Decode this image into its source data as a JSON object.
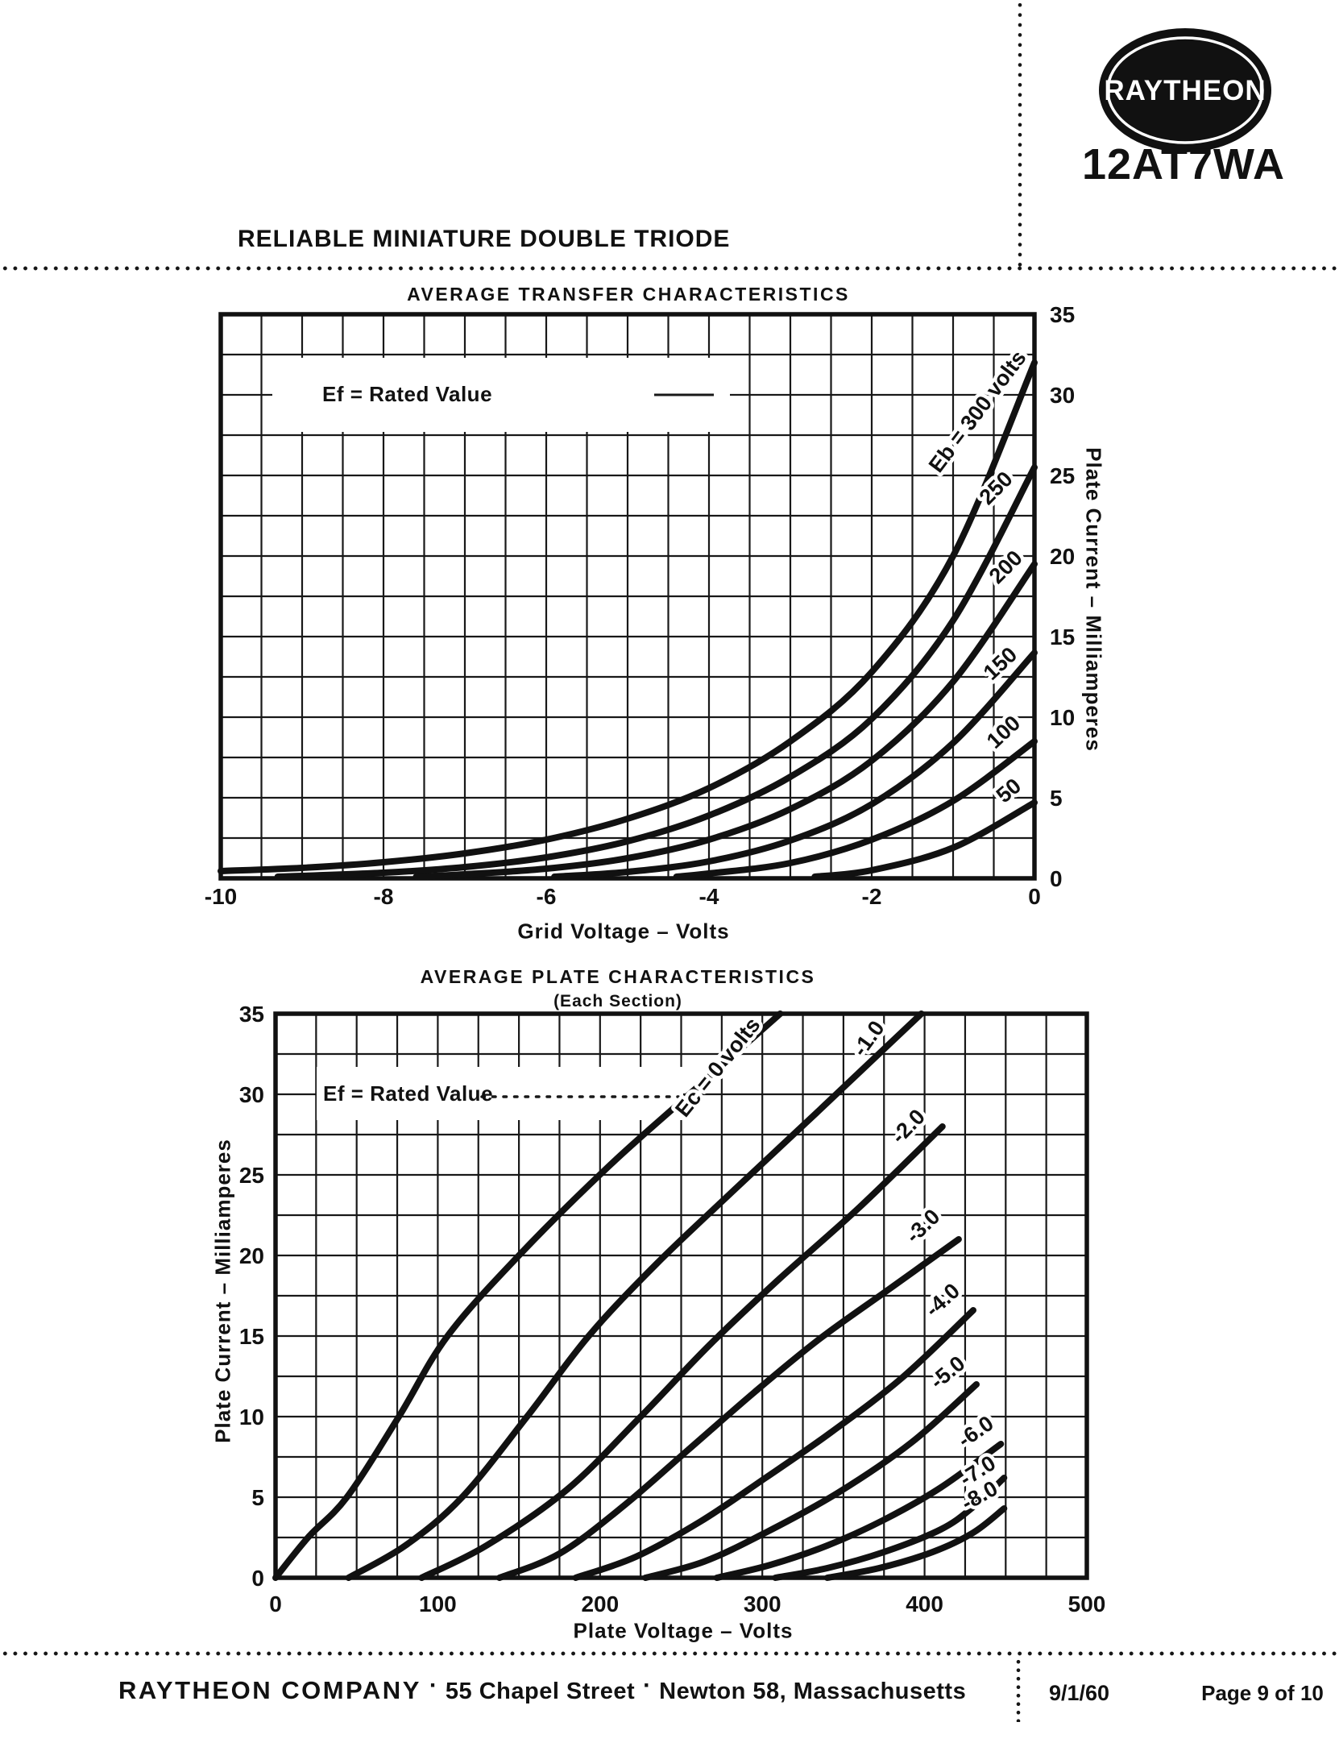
{
  "header": {
    "logo_text": "RAYTHEON",
    "part_number": "12AT7WA",
    "heading": "RELIABLE MINIATURE DOUBLE TRIODE"
  },
  "footer": {
    "company": "RAYTHEON COMPANY",
    "separator": "·",
    "street": "55 Chapel Street",
    "city": "Newton 58, Massachusetts",
    "date": "9/1/60",
    "page_label": "Page 9 of 10"
  },
  "chart_data": [
    {
      "type": "line",
      "title": "AVERAGE TRANSFER CHARACTERISTICS",
      "annotation": "Ef = Rated Value",
      "xlabel": "Grid Voltage – Volts",
      "ylabel": "Plate Current – Milliamperes",
      "xlim": [
        -10,
        0
      ],
      "ylim": [
        0,
        35
      ],
      "x_ticks": [
        -10,
        -8,
        -6,
        -4,
        -2,
        0
      ],
      "y_ticks": [
        35,
        30,
        25,
        20,
        15,
        10,
        5,
        0
      ],
      "y_axis_side": "right",
      "grid": true,
      "grid_step_x": 0.5,
      "grid_step_y": 2.5,
      "series": [
        {
          "name": "Eb = 300 volts",
          "label_at": [
            -0.63,
            28.7
          ],
          "label_angle": -53,
          "points": [
            [
              -10,
              0.45
            ],
            [
              -9,
              0.65
            ],
            [
              -8,
              1.0
            ],
            [
              -7,
              1.55
            ],
            [
              -6,
              2.4
            ],
            [
              -5,
              3.7
            ],
            [
              -4,
              5.6
            ],
            [
              -3,
              8.5
            ],
            [
              -2,
              12.8
            ],
            [
              -1,
              20
            ],
            [
              0,
              32
            ]
          ]
        },
        {
          "name": "250",
          "label_at": [
            -0.41,
            23.9
          ],
          "label_angle": -45,
          "points": [
            [
              -9.3,
              0.1
            ],
            [
              -8,
              0.35
            ],
            [
              -7,
              0.7
            ],
            [
              -6,
              1.3
            ],
            [
              -5,
              2.3
            ],
            [
              -4,
              3.9
            ],
            [
              -3,
              6.3
            ],
            [
              -2,
              9.9
            ],
            [
              -1,
              16
            ],
            [
              0,
              25.5
            ]
          ]
        },
        {
          "name": "200",
          "label_at": [
            -0.29,
            19.0
          ],
          "label_angle": -45,
          "points": [
            [
              -7.6,
              0.1
            ],
            [
              -7,
              0.25
            ],
            [
              -6,
              0.6
            ],
            [
              -5,
              1.25
            ],
            [
              -4,
              2.4
            ],
            [
              -3,
              4.3
            ],
            [
              -2,
              7.3
            ],
            [
              -1,
              12.2
            ],
            [
              0,
              19.5
            ]
          ]
        },
        {
          "name": "150",
          "label_at": [
            -0.36,
            13.0
          ],
          "label_angle": -43,
          "points": [
            [
              -5.9,
              0.1
            ],
            [
              -5,
              0.4
            ],
            [
              -4,
              1.05
            ],
            [
              -3,
              2.35
            ],
            [
              -2,
              4.6
            ],
            [
              -1,
              8.4
            ],
            [
              0,
              14
            ]
          ]
        },
        {
          "name": "100",
          "label_at": [
            -0.32,
            8.75
          ],
          "label_angle": -43,
          "points": [
            [
              -4.4,
              0.1
            ],
            [
              -4,
              0.3
            ],
            [
              -3,
              0.95
            ],
            [
              -2,
              2.4
            ],
            [
              -1,
              4.8
            ],
            [
              0,
              8.5
            ]
          ]
        },
        {
          "name": "50",
          "label_at": [
            -0.26,
            5.1
          ],
          "label_angle": -40,
          "points": [
            [
              -2.7,
              0.1
            ],
            [
              -2,
              0.5
            ],
            [
              -1,
              1.9
            ],
            [
              0,
              4.7
            ]
          ]
        }
      ]
    },
    {
      "type": "line",
      "title": "AVERAGE PLATE CHARACTERISTICS",
      "subtitle": "(Each Section)",
      "annotation": "Ef = Rated Value",
      "xlabel": "Plate Voltage – Volts",
      "ylabel": "Plate Current – Milliamperes",
      "xlim": [
        0,
        500
      ],
      "ylim": [
        0,
        35
      ],
      "x_ticks": [
        0,
        100,
        200,
        300,
        400,
        500
      ],
      "y_ticks": [
        35,
        30,
        25,
        20,
        15,
        10,
        5,
        0
      ],
      "y_axis_side": "left",
      "grid": true,
      "grid_step_x": 25,
      "grid_step_y": 2.5,
      "series": [
        {
          "name": "Ec = 0 volts",
          "label_at": [
            276,
            31.4
          ],
          "label_angle": -51,
          "points": [
            [
              0,
              0
            ],
            [
              20,
              2.5
            ],
            [
              44,
              5
            ],
            [
              76,
              10
            ],
            [
              106,
              15
            ],
            [
              150,
              20
            ],
            [
              205,
              25.5
            ],
            [
              255,
              30
            ],
            [
              311,
              35
            ]
          ]
        },
        {
          "name": "-1.0",
          "label_at": [
            369,
            33.2
          ],
          "label_angle": -54,
          "points": [
            [
              45,
              0
            ],
            [
              80,
              2
            ],
            [
              115,
              5
            ],
            [
              155,
              10
            ],
            [
              193,
              15
            ],
            [
              235,
              19.5
            ],
            [
              282,
              24
            ],
            [
              335,
              29
            ],
            [
              398,
              35
            ]
          ]
        },
        {
          "name": "-2.0",
          "label_at": [
            393,
            27.7
          ],
          "label_angle": -46,
          "points": [
            [
              90,
              0
            ],
            [
              130,
              2
            ],
            [
              180,
              5.5
            ],
            [
              225,
              10
            ],
            [
              268,
              14.5
            ],
            [
              310,
              18.5
            ],
            [
              360,
              23
            ],
            [
              411,
              28
            ]
          ]
        },
        {
          "name": "-3.0",
          "label_at": [
            402,
            21.5
          ],
          "label_angle": -44,
          "points": [
            [
              138,
              0
            ],
            [
              175,
              1.5
            ],
            [
              215,
              4.5
            ],
            [
              255,
              8
            ],
            [
              295,
              11.5
            ],
            [
              335,
              14.8
            ],
            [
              378,
              17.9
            ],
            [
              421,
              21
            ]
          ]
        },
        {
          "name": "-4.0",
          "label_at": [
            414,
            16.9
          ],
          "label_angle": -42,
          "points": [
            [
              185,
              0
            ],
            [
              222,
              1.3
            ],
            [
              262,
              3.5
            ],
            [
              302,
              6.2
            ],
            [
              342,
              9
            ],
            [
              386,
              12.4
            ],
            [
              430,
              16.6
            ]
          ]
        },
        {
          "name": "-5.0",
          "label_at": [
            417,
            12.4
          ],
          "label_angle": -40,
          "points": [
            [
              228,
              0
            ],
            [
              264,
              1
            ],
            [
              302,
              2.8
            ],
            [
              347,
              5.3
            ],
            [
              392,
              8.4
            ],
            [
              432,
              12
            ]
          ]
        },
        {
          "name": "-6.0",
          "label_at": [
            434,
            8.7
          ],
          "label_angle": -35,
          "points": [
            [
              272,
              0
            ],
            [
              305,
              0.8
            ],
            [
              340,
              2
            ],
            [
              375,
              3.6
            ],
            [
              410,
              5.6
            ],
            [
              447,
              8.3
            ]
          ]
        },
        {
          "name": "-7.0",
          "label_at": [
            435,
            6.25
          ],
          "label_angle": -32,
          "points": [
            [
              308,
              0
            ],
            [
              340,
              0.6
            ],
            [
              375,
              1.6
            ],
            [
              410,
              3
            ],
            [
              430,
              4.4
            ],
            [
              449,
              6.2
            ]
          ]
        },
        {
          "name": "-8.0",
          "label_at": [
            436,
            4.7
          ],
          "label_angle": -29,
          "points": [
            [
              340,
              0
            ],
            [
              372,
              0.6
            ],
            [
              405,
              1.6
            ],
            [
              430,
              2.8
            ],
            [
              449,
              4.3
            ]
          ]
        }
      ]
    }
  ]
}
